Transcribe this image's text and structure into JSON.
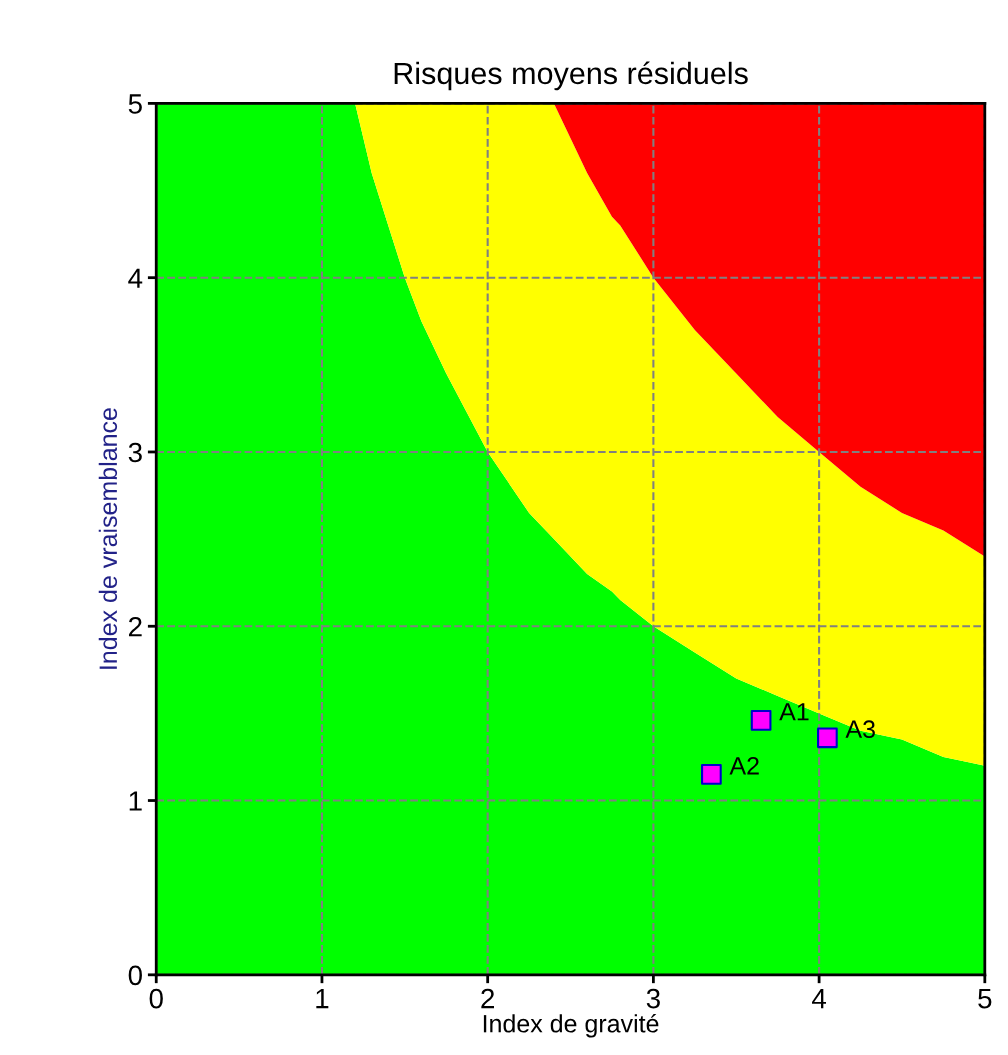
{
  "chart_data": {
    "type": "area",
    "stacked": true,
    "title": "Risques moyens résiduels",
    "xlabel": "Index de gravité",
    "ylabel": "Index de vraisemblance",
    "xlim": [
      0,
      5
    ],
    "ylim": [
      0,
      5
    ],
    "xticks": [
      0,
      1,
      2,
      3,
      4,
      5
    ],
    "yticks": [
      0,
      1,
      2,
      3,
      4,
      5
    ],
    "grid": true,
    "x": [
      0,
      1.2,
      1.3,
      1.4,
      1.5,
      1.6,
      1.75,
      2,
      2.25,
      2.4,
      2.5,
      2.6,
      2.75,
      2.8,
      3,
      3.25,
      3.5,
      3.75,
      4,
      4.25,
      4.5,
      4.75,
      5
    ],
    "series": [
      {
        "color": "#00ff00",
        "values": [
          5,
          5,
          4.6,
          4.3,
          4,
          3.75,
          3.45,
          3,
          2.65,
          2.5,
          2.4,
          2.3,
          2.2,
          2.15,
          2,
          1.85,
          1.7,
          1.6,
          1.5,
          1.4,
          1.35,
          1.25,
          1.2
        ]
      },
      {
        "color": "#ffff00",
        "values": [
          0,
          0,
          0.4,
          0.7,
          1,
          1.25,
          1.55,
          2,
          2.35,
          2.5,
          2.4,
          2.3,
          2.15,
          2.15,
          2,
          1.85,
          1.75,
          1.6,
          1.5,
          1.4,
          1.3,
          1.3,
          1.2
        ]
      },
      {
        "color": "#ff0000",
        "values": [
          0,
          0,
          0,
          0,
          0,
          0,
          0,
          0,
          0,
          0,
          0.2,
          0.4,
          0.65,
          0.7,
          1,
          1.3,
          1.55,
          1.8,
          2,
          2.2,
          2.35,
          2.45,
          2.6
        ]
      },
      {
        "type": "scatter",
        "color": "#ff00ff",
        "x": [
          3.65,
          3.35,
          4.05
        ],
        "values": [
          1.46,
          1.15,
          1.36
        ],
        "marker": "square"
      }
    ],
    "annotations": [
      {
        "text": "A1",
        "x": 3.65,
        "y": 1.46
      },
      {
        "text": "A2",
        "x": 3.35,
        "y": 1.15
      },
      {
        "text": "A3",
        "x": 4.05,
        "y": 1.36
      }
    ]
  }
}
